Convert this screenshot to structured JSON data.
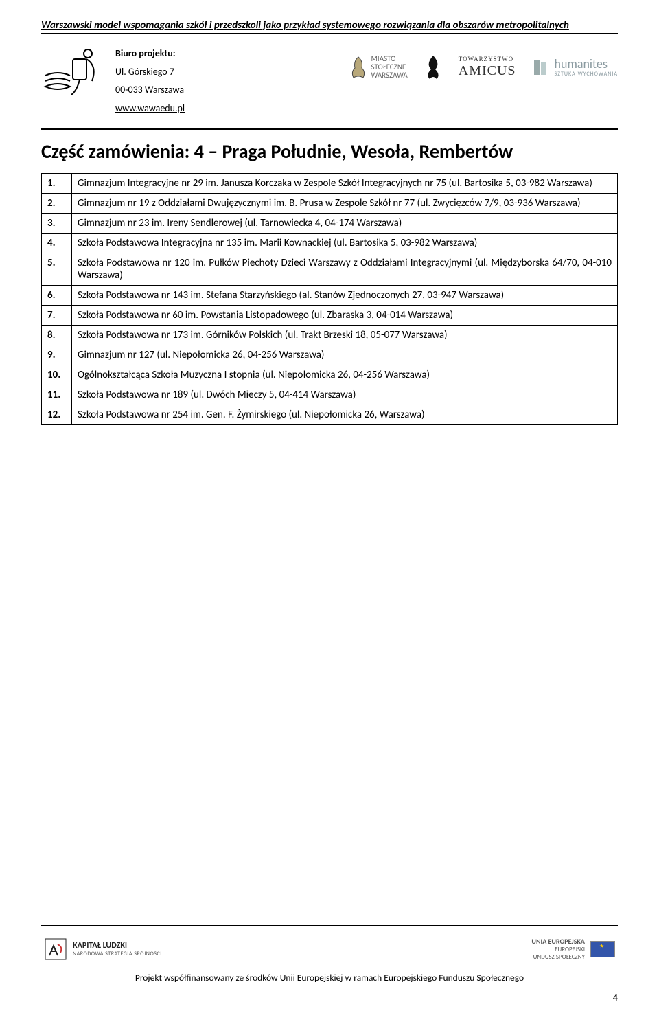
{
  "header": {
    "doc_title": "Warszawski model wspomagania szkół i przedszkoli jako przykład systemowego rozwiązania dla obszarów metropolitalnych",
    "office_label": "Biuro projektu:",
    "office_addr1": "Ul. Górskiego 7",
    "office_addr2": "00-033 Warszawa",
    "office_url": "www.wawaedu.pl",
    "partner1a": "MIASTO",
    "partner1b": "STOŁECZNE",
    "partner1c": "WARSZAWA",
    "partner2a": "TOWARZYSTWO",
    "partner2b": "AMICUS",
    "partner3a": "humanites",
    "partner3b": "SZTUKA WYCHOWANIA"
  },
  "section": {
    "heading": "Część zamówienia: 4 – Praga Południe, Wesoła, Rembertów"
  },
  "rows": [
    {
      "n": "1.",
      "t": "Gimnazjum Integracyjne nr 29 im. Janusza Korczaka w Zespole Szkół Integracyjnych nr 75 (ul. Bartosika 5, 03-982 Warszawa)"
    },
    {
      "n": "2.",
      "t": "Gimnazjum nr 19 z Oddziałami Dwujęzycznymi im. B. Prusa w Zespole Szkół nr 77 (ul. Zwycięzców 7/9, 03-936 Warszawa)"
    },
    {
      "n": "3.",
      "t": "Gimnazjum nr 23 im. Ireny Sendlerowej (ul. Tarnowiecka 4, 04-174 Warszawa)"
    },
    {
      "n": "4.",
      "t": "Szkoła Podstawowa Integracyjna nr 135 im. Marii Kownackiej (ul. Bartosika 5, 03-982 Warszawa)"
    },
    {
      "n": "5.",
      "t": "Szkoła Podstawowa nr 120 im. Pułków Piechoty Dzieci Warszawy z Oddziałami Integracyjnymi (ul. Międzyborska 64/70, 04-010 Warszawa)"
    },
    {
      "n": "6.",
      "t": "Szkoła Podstawowa nr 143 im. Stefana Starzyńskiego (al. Stanów Zjednoczonych 27, 03-947 Warszawa)"
    },
    {
      "n": "7.",
      "t": "Szkoła Podstawowa nr 60 im. Powstania Listopadowego (ul. Zbaraska 3, 04-014 Warszawa)"
    },
    {
      "n": "8.",
      "t": "Szkoła Podstawowa nr 173 im. Górników Polskich (ul. Trakt Brzeski 18, 05-077 Warszawa)"
    },
    {
      "n": "9.",
      "t": "Gimnazjum nr 127 (ul. Niepołomicka 26, 04-256 Warszawa)"
    },
    {
      "n": "10.",
      "t": "Ogólnokształcąca Szkoła Muzyczna I stopnia (ul. Niepołomicka 26, 04-256 Warszawa)"
    },
    {
      "n": "11.",
      "t": "Szkoła Podstawowa nr 189 (ul. Dwóch Mieczy 5, 04-414 Warszawa)"
    },
    {
      "n": "12.",
      "t": "Szkoła Podstawowa nr 254 im. Gen. F. Żymirskiego (ul. Niepołomicka 26, Warszawa)"
    }
  ],
  "footer": {
    "kl_title": "KAPITAŁ LUDZKI",
    "kl_sub": "NARODOWA STRATEGIA SPÓJNOŚCI",
    "eu_title": "UNIA EUROPEJSKA",
    "eu_sub1": "EUROPEJSKI",
    "eu_sub2": "FUNDUSZ SPOŁECZNY",
    "cofinance": "Projekt współfinansowany ze środków Unii Europejskiej w ramach Europejskiego Funduszu Społecznego",
    "page_number": "4"
  }
}
